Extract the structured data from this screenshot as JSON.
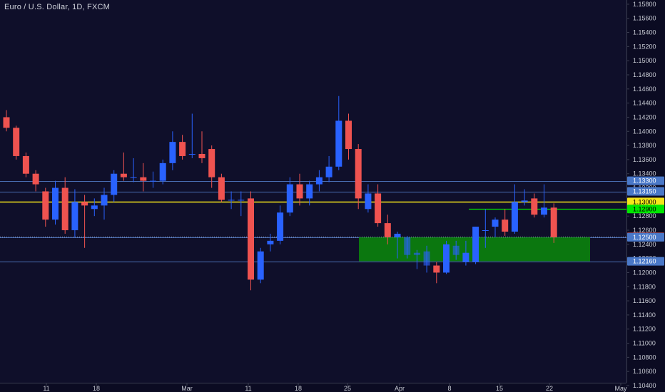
{
  "header": {
    "symbol_title": "Euro / U.S. Dollar, 1D, FXCM"
  },
  "colors": {
    "background": "#0f0f2a",
    "up": "#2962ff",
    "down": "#ef5350",
    "zone": "#0a8a0a",
    "yellow": "#f5e51a",
    "green": "#00e600",
    "hline": "#4a6fb5",
    "axis_text": "#c8cbd4"
  },
  "chart_data": {
    "type": "candlestick",
    "ylim": [
      1.104,
      1.159
    ],
    "y_ticks": [
      "1.15800",
      "1.15600",
      "1.15400",
      "1.15200",
      "1.15000",
      "1.14800",
      "1.14600",
      "1.14400",
      "1.14200",
      "1.14000",
      "1.13800",
      "1.13600",
      "1.13400",
      "1.13200",
      "1.12800",
      "1.12600",
      "1.12400",
      "1.12200",
      "1.12000",
      "1.11800",
      "1.11600",
      "1.11400",
      "1.11200",
      "1.11000",
      "1.10800",
      "1.10600",
      "1.10400"
    ],
    "x_ticks": [
      "11",
      "18",
      "Mar",
      "11",
      "18",
      "25",
      "Apr",
      "8",
      "15",
      "22",
      "May"
    ],
    "candles": [
      {
        "o": 1.142,
        "h": 1.143,
        "l": 1.14,
        "c": 1.1405
      },
      {
        "o": 1.1405,
        "h": 1.1408,
        "l": 1.136,
        "c": 1.1365
      },
      {
        "o": 1.1365,
        "h": 1.137,
        "l": 1.1335,
        "c": 1.134
      },
      {
        "o": 1.134,
        "h": 1.1345,
        "l": 1.1315,
        "c": 1.1325
      },
      {
        "o": 1.1315,
        "h": 1.132,
        "l": 1.1265,
        "c": 1.1275
      },
      {
        "o": 1.1275,
        "h": 1.133,
        "l": 1.1268,
        "c": 1.132
      },
      {
        "o": 1.132,
        "h": 1.1335,
        "l": 1.1255,
        "c": 1.126
      },
      {
        "o": 1.126,
        "h": 1.1318,
        "l": 1.125,
        "c": 1.13
      },
      {
        "o": 1.13,
        "h": 1.131,
        "l": 1.1235,
        "c": 1.1295
      },
      {
        "o": 1.129,
        "h": 1.1305,
        "l": 1.128,
        "c": 1.1295
      },
      {
        "o": 1.1295,
        "h": 1.132,
        "l": 1.1275,
        "c": 1.131
      },
      {
        "o": 1.131,
        "h": 1.1345,
        "l": 1.13,
        "c": 1.134
      },
      {
        "o": 1.134,
        "h": 1.137,
        "l": 1.133,
        "c": 1.1335
      },
      {
        "o": 1.1335,
        "h": 1.1362,
        "l": 1.1328,
        "c": 1.1335
      },
      {
        "o": 1.1335,
        "h": 1.1355,
        "l": 1.1315,
        "c": 1.133
      },
      {
        "o": 1.133,
        "h": 1.1343,
        "l": 1.132,
        "c": 1.133
      },
      {
        "o": 1.133,
        "h": 1.136,
        "l": 1.1325,
        "c": 1.1355
      },
      {
        "o": 1.1355,
        "h": 1.14,
        "l": 1.1345,
        "c": 1.1385
      },
      {
        "o": 1.1385,
        "h": 1.1395,
        "l": 1.136,
        "c": 1.1365
      },
      {
        "o": 1.1368,
        "h": 1.1425,
        "l": 1.1362,
        "c": 1.1368
      },
      {
        "o": 1.1368,
        "h": 1.14,
        "l": 1.1355,
        "c": 1.1362
      },
      {
        "o": 1.1375,
        "h": 1.138,
        "l": 1.132,
        "c": 1.1335
      },
      {
        "o": 1.1335,
        "h": 1.134,
        "l": 1.13,
        "c": 1.1303
      },
      {
        "o": 1.1303,
        "h": 1.1315,
        "l": 1.129,
        "c": 1.1303
      },
      {
        "o": 1.1303,
        "h": 1.1315,
        "l": 1.128,
        "c": 1.1303
      },
      {
        "o": 1.1305,
        "h": 1.1315,
        "l": 1.1175,
        "c": 1.119
      },
      {
        "o": 1.119,
        "h": 1.1235,
        "l": 1.1185,
        "c": 1.123
      },
      {
        "o": 1.124,
        "h": 1.1255,
        "l": 1.123,
        "c": 1.1245
      },
      {
        "o": 1.1245,
        "h": 1.1295,
        "l": 1.124,
        "c": 1.1285
      },
      {
        "o": 1.1285,
        "h": 1.1335,
        "l": 1.128,
        "c": 1.1325
      },
      {
        "o": 1.1325,
        "h": 1.134,
        "l": 1.1295,
        "c": 1.1305
      },
      {
        "o": 1.1305,
        "h": 1.133,
        "l": 1.1295,
        "c": 1.1325
      },
      {
        "o": 1.1325,
        "h": 1.1345,
        "l": 1.1315,
        "c": 1.1335
      },
      {
        "o": 1.1335,
        "h": 1.1365,
        "l": 1.1328,
        "c": 1.135
      },
      {
        "o": 1.135,
        "h": 1.145,
        "l": 1.1345,
        "c": 1.1415
      },
      {
        "o": 1.1415,
        "h": 1.1425,
        "l": 1.136,
        "c": 1.1375
      },
      {
        "o": 1.1375,
        "h": 1.1382,
        "l": 1.129,
        "c": 1.1305
      },
      {
        "o": 1.129,
        "h": 1.1325,
        "l": 1.1285,
        "c": 1.1312
      },
      {
        "o": 1.1312,
        "h": 1.1325,
        "l": 1.1265,
        "c": 1.127
      },
      {
        "o": 1.127,
        "h": 1.1282,
        "l": 1.124,
        "c": 1.125
      },
      {
        "o": 1.125,
        "h": 1.1258,
        "l": 1.122,
        "c": 1.1255
      },
      {
        "o": 1.1225,
        "h": 1.1252,
        "l": 1.122,
        "c": 1.125
      },
      {
        "o": 1.1225,
        "h": 1.1232,
        "l": 1.1205,
        "c": 1.1228
      },
      {
        "o": 1.121,
        "h": 1.1238,
        "l": 1.12,
        "c": 1.123
      },
      {
        "o": 1.121,
        "h": 1.1215,
        "l": 1.1185,
        "c": 1.12
      },
      {
        "o": 1.12,
        "h": 1.1245,
        "l": 1.1198,
        "c": 1.124
      },
      {
        "o": 1.1225,
        "h": 1.1245,
        "l": 1.1218,
        "c": 1.1238
      },
      {
        "o": 1.1215,
        "h": 1.1245,
        "l": 1.121,
        "c": 1.1228
      },
      {
        "o": 1.1215,
        "h": 1.1265,
        "l": 1.1212,
        "c": 1.1265
      },
      {
        "o": 1.126,
        "h": 1.129,
        "l": 1.1235,
        "c": 1.126
      },
      {
        "o": 1.1265,
        "h": 1.1278,
        "l": 1.125,
        "c": 1.1275
      },
      {
        "o": 1.1275,
        "h": 1.129,
        "l": 1.1252,
        "c": 1.1258
      },
      {
        "o": 1.1258,
        "h": 1.1325,
        "l": 1.1255,
        "c": 1.13
      },
      {
        "o": 1.13,
        "h": 1.1318,
        "l": 1.1295,
        "c": 1.1302
      },
      {
        "o": 1.1305,
        "h": 1.1312,
        "l": 1.1278,
        "c": 1.1282
      },
      {
        "o": 1.1282,
        "h": 1.1325,
        "l": 1.1278,
        "c": 1.1292
      },
      {
        "o": 1.1292,
        "h": 1.1298,
        "l": 1.1242,
        "c": 1.125
      }
    ],
    "horizontal_levels": [
      {
        "label": "1.13300",
        "value": 1.133,
        "type": "hline"
      },
      {
        "label": "1.13150",
        "value": 1.1315,
        "type": "hline"
      },
      {
        "label": "1.13000",
        "value": 1.13,
        "type": "yellow"
      },
      {
        "label": "1.12900",
        "value": 1.129,
        "type": "green"
      },
      {
        "label": "1.12506",
        "value": 1.12506,
        "type": "price"
      },
      {
        "label": "1.12500",
        "value": 1.125,
        "type": "hline"
      },
      {
        "label": "1.12160",
        "value": 1.1216,
        "type": "hline"
      }
    ],
    "overlap_tag": "1.13200",
    "zone": {
      "top": 1.125,
      "bottom": 1.1216
    }
  }
}
